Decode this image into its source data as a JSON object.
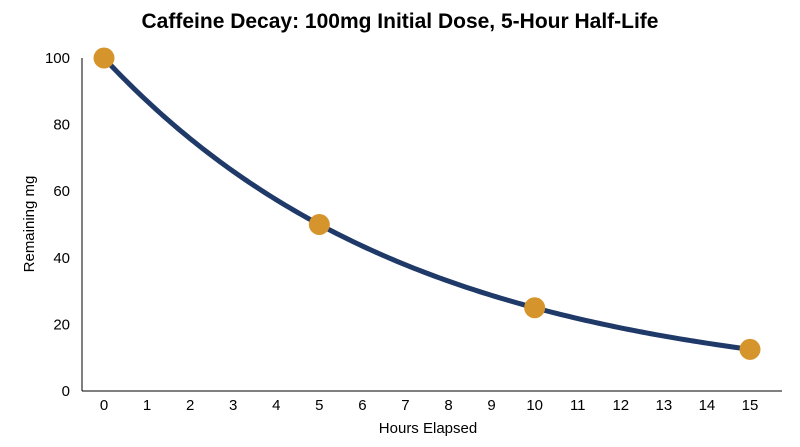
{
  "chart_data": {
    "type": "line",
    "title": "Caffeine Decay: 100mg Initial Dose, 5-Hour Half-Life",
    "xlabel": "Hours Elapsed",
    "ylabel": "Remaining mg",
    "xlim": [
      0,
      15
    ],
    "ylim": [
      0,
      100
    ],
    "x_ticks": [
      "0",
      "1",
      "2",
      "3",
      "4",
      "5",
      "6",
      "7",
      "8",
      "9",
      "10",
      "11",
      "12",
      "13",
      "14",
      "15"
    ],
    "y_ticks": [
      "0",
      "20",
      "40",
      "60",
      "80",
      "100"
    ],
    "grid": false,
    "legend": "none",
    "series": [
      {
        "curve": "exponential decay",
        "initial_dose_mg": 100,
        "half_life_hours": 5,
        "color": "#1f3a68"
      }
    ],
    "markers": {
      "x": [
        0,
        5,
        10,
        15
      ],
      "y": [
        100,
        50,
        25,
        12.5
      ],
      "color": "#d6952c"
    }
  }
}
